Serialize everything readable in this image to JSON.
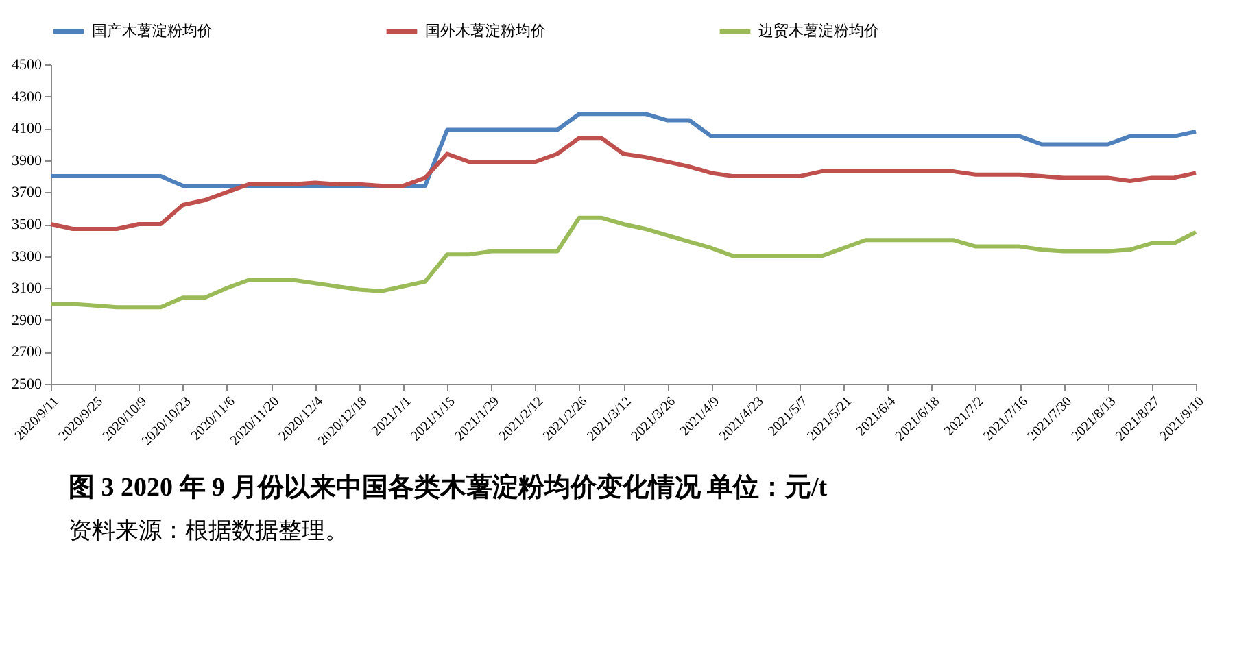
{
  "chart_data": {
    "type": "line",
    "title": "图 3   2020 年 9 月份以来中国各类木薯淀粉均价变化情况      单位：元/t",
    "annotations": [
      "资料来源：根据数据整理。"
    ],
    "categories": [
      "2020/9/11",
      null,
      "2020/9/25",
      null,
      "2020/10/9",
      null,
      "2020/10/23",
      null,
      "2020/11/6",
      null,
      "2020/11/20",
      null,
      "2020/12/4",
      null,
      "2020/12/18",
      null,
      "2021/1/1",
      null,
      "2021/1/15",
      null,
      "2021/1/29",
      null,
      "2021/2/12",
      null,
      "2021/2/26",
      null,
      "2021/3/12",
      null,
      "2021/3/26",
      null,
      "2021/4/9",
      null,
      "2021/4/23",
      null,
      "2021/5/7",
      null,
      "2021/5/21",
      null,
      "2021/6/4",
      null,
      "2021/6/18",
      null,
      "2021/7/2",
      null,
      "2021/7/16",
      null,
      "2021/7/30",
      null,
      "2021/8/13",
      null,
      "2021/8/27",
      null,
      "2021/9/10"
    ],
    "series": [
      {
        "name": "国产木薯淀粉均价",
        "color": "#4f81bd",
        "values": [
          3800,
          3800,
          3800,
          3800,
          3800,
          3800,
          3740,
          3740,
          3740,
          3740,
          3740,
          3740,
          3740,
          3740,
          3740,
          3740,
          3740,
          3740,
          4090,
          4090,
          4090,
          4090,
          4090,
          4090,
          4190,
          4190,
          4190,
          4190,
          4150,
          4150,
          4050,
          4050,
          4050,
          4050,
          4050,
          4050,
          4050,
          4050,
          4050,
          4050,
          4050,
          4050,
          4050,
          4050,
          4050,
          4000,
          4000,
          4000,
          4000,
          4050,
          4050,
          4050,
          4080
        ]
      },
      {
        "name": "国外木薯淀粉均价",
        "color": "#c0504d",
        "values": [
          3500,
          3470,
          3470,
          3470,
          3500,
          3500,
          3620,
          3650,
          3700,
          3750,
          3750,
          3750,
          3760,
          3750,
          3750,
          3740,
          3740,
          3790,
          3940,
          3890,
          3890,
          3890,
          3890,
          3940,
          4040,
          4040,
          3940,
          3920,
          3890,
          3860,
          3820,
          3800,
          3800,
          3800,
          3800,
          3830,
          3830,
          3830,
          3830,
          3830,
          3830,
          3830,
          3810,
          3810,
          3810,
          3800,
          3790,
          3790,
          3790,
          3770,
          3790,
          3790,
          3820
        ]
      },
      {
        "name": "边贸木薯淀粉均价",
        "color": "#9bbb59",
        "values": [
          3000,
          3000,
          2990,
          2980,
          2980,
          2980,
          3040,
          3040,
          3100,
          3150,
          3150,
          3150,
          3130,
          3110,
          3090,
          3080,
          3110,
          3140,
          3310,
          3310,
          3330,
          3330,
          3330,
          3330,
          3540,
          3540,
          3500,
          3470,
          3430,
          3390,
          3350,
          3300,
          3300,
          3300,
          3300,
          3300,
          3350,
          3400,
          3400,
          3400,
          3400,
          3400,
          3360,
          3360,
          3360,
          3340,
          3330,
          3330,
          3330,
          3340,
          3380,
          3380,
          3450
        ]
      }
    ],
    "ylim": [
      2500,
      4500
    ],
    "yticks": [
      2500,
      2700,
      2900,
      3100,
      3300,
      3500,
      3700,
      3900,
      4100,
      4300,
      4500
    ],
    "legend": "top",
    "grid": false
  }
}
